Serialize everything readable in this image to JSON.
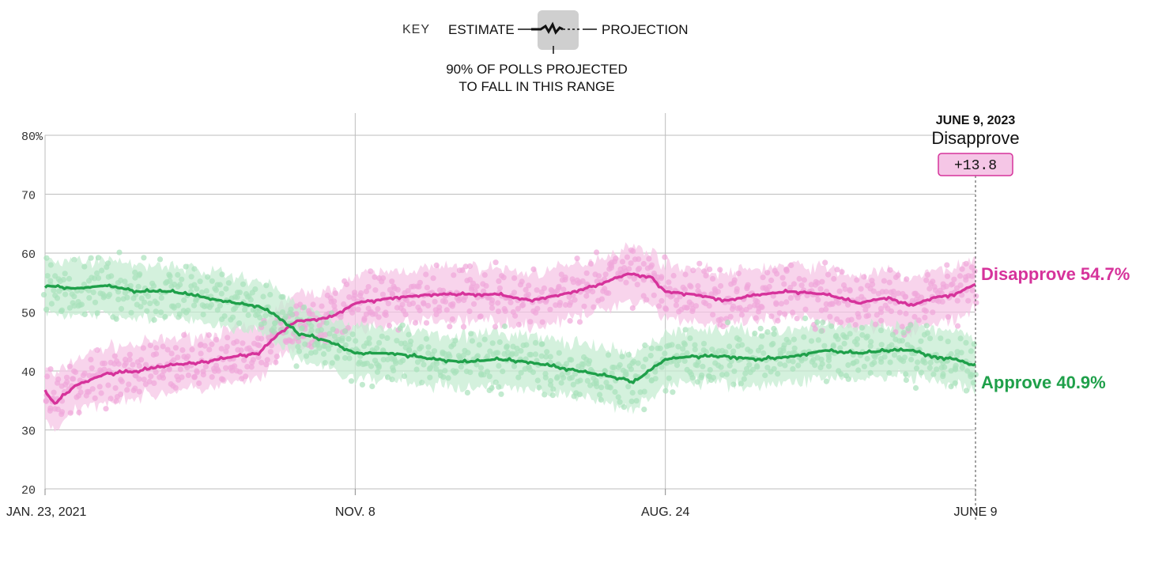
{
  "key": {
    "label": "KEY",
    "estimate": "ESTIMATE",
    "projection": "PROJECTION",
    "range_line1": "90% OF POLLS PROJECTED",
    "range_line2": "TO FALL IN THIS RANGE"
  },
  "callout": {
    "date": "JUNE 9, 2023",
    "label": "Disapprove",
    "margin": "+13.8"
  },
  "colors": {
    "disapprove": "#d6339b",
    "disapprove_band": "#f5c6e6",
    "disapprove_dots": "#f0a7da",
    "approve": "#1fa04a",
    "approve_band": "#c6ecd1",
    "approve_dots": "#a8e1bb",
    "grid": "#bdbdbd"
  },
  "chart_data": {
    "type": "line",
    "x_tick_labels": [
      "JAN. 23, 2021",
      "NOV. 8",
      "AUG. 24",
      "JUNE 9"
    ],
    "x_tick_dates": [
      "2021-01-23",
      "2021-11-08",
      "2022-08-24",
      "2023-06-09"
    ],
    "xlim": [
      "2021-01-23",
      "2023-06-09"
    ],
    "y_tick_labels": [
      "80%",
      "70",
      "60",
      "50",
      "40",
      "30",
      "20"
    ],
    "y_ticks": [
      80,
      70,
      60,
      50,
      40,
      30,
      20
    ],
    "ylim": [
      20,
      80
    ],
    "grid": true,
    "series": [
      {
        "name": "Disapprove",
        "end_label": "Disapprove 54.7%",
        "points": [
          [
            "2021-01-23",
            36.5
          ],
          [
            "2021-02-01",
            34.5
          ],
          [
            "2021-02-20",
            37.5
          ],
          [
            "2021-03-20",
            39.5
          ],
          [
            "2021-04-20",
            40.0
          ],
          [
            "2021-05-20",
            41.0
          ],
          [
            "2021-06-20",
            41.5
          ],
          [
            "2021-07-20",
            42.5
          ],
          [
            "2021-08-10",
            43.0
          ],
          [
            "2021-08-30",
            46.5
          ],
          [
            "2021-09-15",
            48.5
          ],
          [
            "2021-10-15",
            49.0
          ],
          [
            "2021-11-08",
            51.5
          ],
          [
            "2021-12-15",
            52.5
          ],
          [
            "2022-01-20",
            53.0
          ],
          [
            "2022-02-20",
            53.0
          ],
          [
            "2022-03-20",
            53.0
          ],
          [
            "2022-04-20",
            52.0
          ],
          [
            "2022-05-20",
            53.0
          ],
          [
            "2022-06-20",
            54.5
          ],
          [
            "2022-07-20",
            56.5
          ],
          [
            "2022-08-10",
            56.0
          ],
          [
            "2022-08-24",
            53.5
          ],
          [
            "2022-09-20",
            53.0
          ],
          [
            "2022-10-20",
            52.0
          ],
          [
            "2022-11-20",
            53.0
          ],
          [
            "2022-12-20",
            53.5
          ],
          [
            "2023-01-20",
            53.0
          ],
          [
            "2023-02-20",
            51.5
          ],
          [
            "2023-03-20",
            52.5
          ],
          [
            "2023-04-10",
            51.0
          ],
          [
            "2023-05-01",
            52.5
          ],
          [
            "2023-05-20",
            53.0
          ],
          [
            "2023-06-09",
            54.7
          ]
        ]
      },
      {
        "name": "Approve",
        "end_label": "Approve 40.9%",
        "points": [
          [
            "2021-01-23",
            54.5
          ],
          [
            "2021-02-20",
            54.0
          ],
          [
            "2021-03-20",
            54.5
          ],
          [
            "2021-04-20",
            53.5
          ],
          [
            "2021-05-20",
            53.5
          ],
          [
            "2021-06-20",
            52.5
          ],
          [
            "2021-07-20",
            51.5
          ],
          [
            "2021-08-10",
            51.0
          ],
          [
            "2021-08-30",
            49.0
          ],
          [
            "2021-09-15",
            46.5
          ],
          [
            "2021-10-15",
            45.0
          ],
          [
            "2021-11-08",
            43.0
          ],
          [
            "2021-12-15",
            43.0
          ],
          [
            "2022-01-20",
            42.0
          ],
          [
            "2022-02-20",
            41.5
          ],
          [
            "2022-03-20",
            42.0
          ],
          [
            "2022-04-20",
            41.5
          ],
          [
            "2022-05-20",
            40.5
          ],
          [
            "2022-06-20",
            39.5
          ],
          [
            "2022-07-20",
            38.5
          ],
          [
            "2022-07-25",
            38.0
          ],
          [
            "2022-08-24",
            42.0
          ],
          [
            "2022-09-20",
            42.5
          ],
          [
            "2022-10-20",
            42.5
          ],
          [
            "2022-11-20",
            42.0
          ],
          [
            "2022-12-20",
            42.5
          ],
          [
            "2023-01-20",
            43.5
          ],
          [
            "2023-02-20",
            43.0
          ],
          [
            "2023-03-20",
            43.5
          ],
          [
            "2023-04-10",
            43.5
          ],
          [
            "2023-05-01",
            42.5
          ],
          [
            "2023-05-20",
            42.0
          ],
          [
            "2023-06-09",
            40.9
          ]
        ]
      }
    ]
  }
}
